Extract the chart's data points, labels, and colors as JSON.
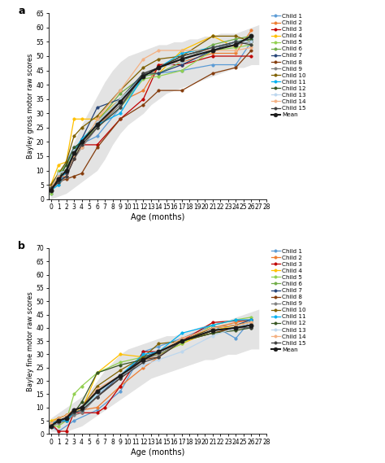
{
  "child_colors": [
    "#5b9bd5",
    "#ed7d31",
    "#c00000",
    "#ffc000",
    "#92d050",
    "#70ad47",
    "#264478",
    "#843c0c",
    "#808080",
    "#7f6000",
    "#00b0f0",
    "#375623",
    "#bdd7ee",
    "#f4b183",
    "#404040",
    "#1a1a1a"
  ],
  "child_labels": [
    "Child 1",
    "Child 2",
    "Child 3",
    "Child 4",
    "Child 5",
    "Child 6",
    "Child 7",
    "Child 8",
    "Child 9",
    "Child 10",
    "Child 11",
    "Child 12",
    "Child 13",
    "Child 14",
    "Child 15",
    "Mean"
  ],
  "gross_motor": {
    "ages": [
      [
        0,
        1,
        3,
        6,
        9,
        12,
        14,
        17,
        21,
        24,
        26
      ],
      [
        0,
        1,
        2,
        3,
        4,
        9,
        12,
        14,
        17,
        21,
        24,
        26
      ],
      [
        0,
        1,
        2,
        3,
        4,
        6,
        9,
        12,
        14,
        17,
        21,
        26
      ],
      [
        0,
        1,
        2,
        3,
        4,
        6,
        9,
        12,
        14,
        17,
        21,
        24
      ],
      [
        0,
        1,
        2,
        3,
        4,
        6,
        9,
        12,
        14,
        17,
        21,
        24,
        26
      ],
      [
        0,
        1,
        2,
        3,
        4,
        6,
        9,
        12,
        14,
        17,
        21,
        24,
        26
      ],
      [
        0,
        1,
        2,
        3,
        4,
        6,
        9,
        12,
        14,
        17,
        21,
        24,
        26
      ],
      [
        0,
        1,
        2,
        3,
        4,
        6,
        9,
        12,
        14,
        17,
        21,
        24,
        26
      ],
      [
        0,
        1,
        2,
        3,
        4,
        6,
        9,
        12,
        14,
        17,
        21,
        24,
        26
      ],
      [
        0,
        1,
        2,
        3,
        4,
        6,
        9,
        12,
        14,
        17,
        21,
        24,
        26
      ],
      [
        0,
        1,
        2,
        3,
        4,
        6,
        9,
        12,
        14,
        17,
        21,
        24,
        26
      ],
      [
        0,
        1,
        2,
        3,
        4,
        6,
        9,
        12,
        14,
        17,
        21,
        24,
        26
      ],
      [
        0,
        1,
        2,
        3,
        4,
        6,
        9,
        12,
        14,
        17,
        21,
        24,
        26
      ],
      [
        0,
        1,
        2,
        3,
        4,
        6,
        9,
        12,
        14,
        17,
        21,
        24,
        26
      ],
      [
        0,
        1,
        2,
        3,
        4,
        6,
        9,
        12,
        14,
        17,
        21,
        24,
        26
      ],
      [
        0,
        1,
        2,
        3,
        4,
        6,
        9,
        12,
        14,
        17,
        21,
        24,
        26
      ]
    ],
    "scores": [
      [
        2,
        8,
        18,
        22,
        32,
        43,
        44,
        45,
        47,
        47,
        55
      ],
      [
        4,
        7,
        9,
        14,
        19,
        34,
        38,
        47,
        48,
        51,
        51,
        59
      ],
      [
        3,
        7,
        8,
        14,
        19,
        19,
        28,
        35,
        47,
        47,
        50,
        50
      ],
      [
        5,
        12,
        13,
        28,
        28,
        28,
        35,
        44,
        44,
        52,
        57,
        53
      ],
      [
        2,
        10,
        10,
        15,
        20,
        25,
        32,
        42,
        43,
        45,
        52,
        53,
        54
      ],
      [
        4,
        9,
        12,
        17,
        20,
        27,
        37,
        43,
        44,
        48,
        54,
        56,
        57
      ],
      [
        4,
        8,
        9,
        15,
        21,
        32,
        35,
        44,
        44,
        47,
        52,
        55,
        55
      ],
      [
        3,
        6,
        7,
        8,
        9,
        18,
        28,
        33,
        38,
        38,
        44,
        46,
        52
      ],
      [
        4,
        5,
        8,
        14,
        18,
        25,
        33,
        43,
        46,
        49,
        53,
        54,
        55
      ],
      [
        5,
        9,
        13,
        22,
        25,
        29,
        38,
        46,
        49,
        50,
        57,
        57,
        55
      ],
      [
        3,
        5,
        10,
        17,
        21,
        26,
        30,
        43,
        46,
        51,
        53,
        55,
        56
      ],
      [
        4,
        7,
        12,
        18,
        20,
        27,
        35,
        43,
        46,
        50,
        53,
        55,
        56
      ],
      [
        3,
        9,
        10,
        17,
        19,
        27,
        35,
        43,
        46,
        48,
        53,
        55,
        55
      ],
      [
        4,
        8,
        8,
        15,
        18,
        28,
        38,
        49,
        52,
        52,
        52,
        52,
        53
      ],
      [
        4,
        6,
        8,
        14,
        19,
        25,
        32,
        44,
        46,
        50,
        53,
        55,
        54
      ],
      [
        3,
        7,
        10,
        16,
        20,
        26,
        34,
        43,
        46,
        49,
        52,
        54,
        57
      ]
    ]
  },
  "fine_motor": {
    "ages": [
      [
        0,
        1,
        3,
        6,
        9,
        12,
        14,
        17,
        21,
        24,
        26
      ],
      [
        0,
        1,
        2,
        3,
        4,
        6,
        9,
        12,
        14,
        17,
        21,
        24,
        26
      ],
      [
        0,
        1,
        2,
        3,
        4,
        6,
        7,
        9,
        12,
        14,
        17,
        21,
        26
      ],
      [
        0,
        1,
        2,
        3,
        4,
        6,
        9,
        12,
        14,
        17,
        21,
        24,
        26
      ],
      [
        0,
        1,
        2,
        3,
        4,
        6,
        9,
        12,
        14,
        17,
        21,
        24,
        26
      ],
      [
        0,
        1,
        2,
        3,
        4,
        6,
        9,
        12,
        14,
        17,
        21,
        24,
        26
      ],
      [
        0,
        1,
        2,
        3,
        4,
        6,
        9,
        12,
        14,
        17,
        21,
        24,
        26
      ],
      [
        0,
        1,
        2,
        3,
        4,
        6,
        9,
        12,
        14,
        17,
        21,
        24,
        26
      ],
      [
        0,
        1,
        2,
        3,
        4,
        6,
        9,
        12,
        14,
        17,
        21,
        24,
        26
      ],
      [
        0,
        1,
        2,
        3,
        4,
        6,
        9,
        12,
        14,
        17,
        21,
        24,
        26
      ],
      [
        0,
        1,
        2,
        3,
        4,
        6,
        9,
        12,
        14,
        17,
        21,
        24,
        26
      ],
      [
        0,
        1,
        2,
        3,
        4,
        6,
        9,
        12,
        14,
        17,
        21,
        24,
        26
      ],
      [
        0,
        1,
        2,
        3,
        4,
        6,
        9,
        12,
        14,
        17,
        21,
        24,
        26
      ],
      [
        0,
        1,
        2,
        3,
        4,
        6,
        9,
        12,
        14,
        17,
        21,
        24,
        26
      ],
      [
        0,
        1,
        2,
        3,
        4,
        6,
        9,
        12,
        14,
        17,
        21,
        24,
        26
      ],
      [
        0,
        1,
        2,
        3,
        4,
        6,
        9,
        12,
        14,
        17,
        21,
        24,
        26
      ]
    ],
    "scores": [
      [
        3,
        1,
        5,
        9,
        16,
        31,
        33,
        36,
        41,
        36,
        43
      ],
      [
        4,
        6,
        7,
        8,
        9,
        10,
        18,
        25,
        29,
        36,
        40,
        42,
        43
      ],
      [
        4,
        1,
        1,
        8,
        8,
        8,
        10,
        18,
        31,
        31,
        35,
        42,
        43
      ],
      [
        5,
        6,
        7,
        9,
        9,
        23,
        30,
        29,
        30,
        34,
        39,
        41,
        42
      ],
      [
        3,
        3,
        5,
        15,
        18,
        23,
        27,
        29,
        30,
        34,
        41,
        43,
        44
      ],
      [
        4,
        5,
        6,
        8,
        9,
        16,
        22,
        29,
        31,
        35,
        38,
        40,
        41
      ],
      [
        4,
        5,
        5,
        8,
        9,
        14,
        22,
        29,
        31,
        35,
        40,
        41,
        43
      ],
      [
        3,
        5,
        6,
        8,
        9,
        14,
        21,
        28,
        29,
        35,
        38,
        40,
        41
      ],
      [
        3,
        4,
        5,
        7,
        8,
        14,
        21,
        28,
        30,
        35,
        39,
        40,
        41
      ],
      [
        4,
        6,
        7,
        9,
        10,
        18,
        24,
        29,
        34,
        35,
        40,
        41,
        42
      ],
      [
        4,
        5,
        5,
        8,
        9,
        15,
        22,
        30,
        31,
        38,
        41,
        43,
        43
      ],
      [
        3,
        5,
        6,
        8,
        12,
        23,
        26,
        28,
        31,
        35,
        38,
        39,
        40
      ],
      [
        3,
        5,
        6,
        8,
        9,
        15,
        22,
        26,
        28,
        31,
        37,
        40,
        42
      ],
      [
        4,
        6,
        7,
        9,
        10,
        17,
        22,
        28,
        31,
        36,
        40,
        41,
        42
      ],
      [
        3,
        5,
        6,
        8,
        9,
        14,
        21,
        27,
        29,
        35,
        39,
        40,
        40
      ],
      [
        3,
        5,
        6,
        9,
        10,
        16,
        22,
        28,
        31,
        35,
        39,
        40,
        41
      ]
    ]
  },
  "gross_shading": {
    "x": [
      0,
      1,
      2,
      3,
      4,
      5,
      6,
      7,
      8,
      9,
      10,
      11,
      12,
      13,
      14,
      15,
      16,
      17,
      18,
      19,
      20,
      21,
      22,
      23,
      24,
      25,
      26,
      27
    ],
    "upper": [
      6,
      9,
      14,
      20,
      26,
      31,
      36,
      41,
      45,
      48,
      50,
      51,
      52,
      53,
      54,
      54,
      55,
      55,
      56,
      56,
      57,
      57,
      58,
      58,
      58,
      59,
      60,
      61
    ],
    "lower": [
      0,
      1,
      2,
      4,
      6,
      8,
      10,
      14,
      19,
      23,
      26,
      28,
      30,
      33,
      35,
      37,
      38,
      39,
      40,
      41,
      42,
      43,
      44,
      45,
      46,
      46,
      47,
      47
    ]
  },
  "fine_shading": {
    "x": [
      0,
      1,
      2,
      3,
      4,
      5,
      6,
      7,
      8,
      9,
      10,
      11,
      12,
      13,
      14,
      15,
      16,
      17,
      18,
      19,
      20,
      21,
      22,
      23,
      24,
      25,
      26,
      27
    ],
    "upper": [
      6,
      8,
      10,
      12,
      14,
      16,
      20,
      24,
      27,
      30,
      32,
      33,
      34,
      35,
      36,
      37,
      37,
      38,
      39,
      40,
      41,
      42,
      43,
      43,
      44,
      45,
      46,
      47
    ],
    "lower": [
      1,
      1,
      1,
      2,
      3,
      5,
      7,
      9,
      11,
      13,
      15,
      17,
      19,
      21,
      22,
      23,
      24,
      25,
      26,
      27,
      28,
      28,
      29,
      30,
      30,
      31,
      32,
      32
    ]
  },
  "xlabel": "Age (months)",
  "gross_ylabel": "Bayley gross motor raw scores",
  "fine_ylabel": "Bayley fine motor raw scores",
  "gross_ylim": [
    0,
    65
  ],
  "fine_ylim": [
    0,
    70
  ],
  "gross_yticks": [
    0,
    5,
    10,
    15,
    20,
    25,
    30,
    35,
    40,
    45,
    50,
    55,
    60,
    65
  ],
  "fine_yticks": [
    0,
    5,
    10,
    15,
    20,
    25,
    30,
    35,
    40,
    45,
    50,
    55,
    60,
    65,
    70
  ],
  "xticks": [
    0,
    1,
    2,
    3,
    4,
    5,
    6,
    7,
    8,
    9,
    10,
    11,
    12,
    13,
    14,
    15,
    16,
    17,
    18,
    19,
    20,
    21,
    22,
    23,
    24,
    25,
    26,
    27,
    28
  ],
  "xlim": [
    -0.3,
    28
  ],
  "shading_alpha": 0.55
}
